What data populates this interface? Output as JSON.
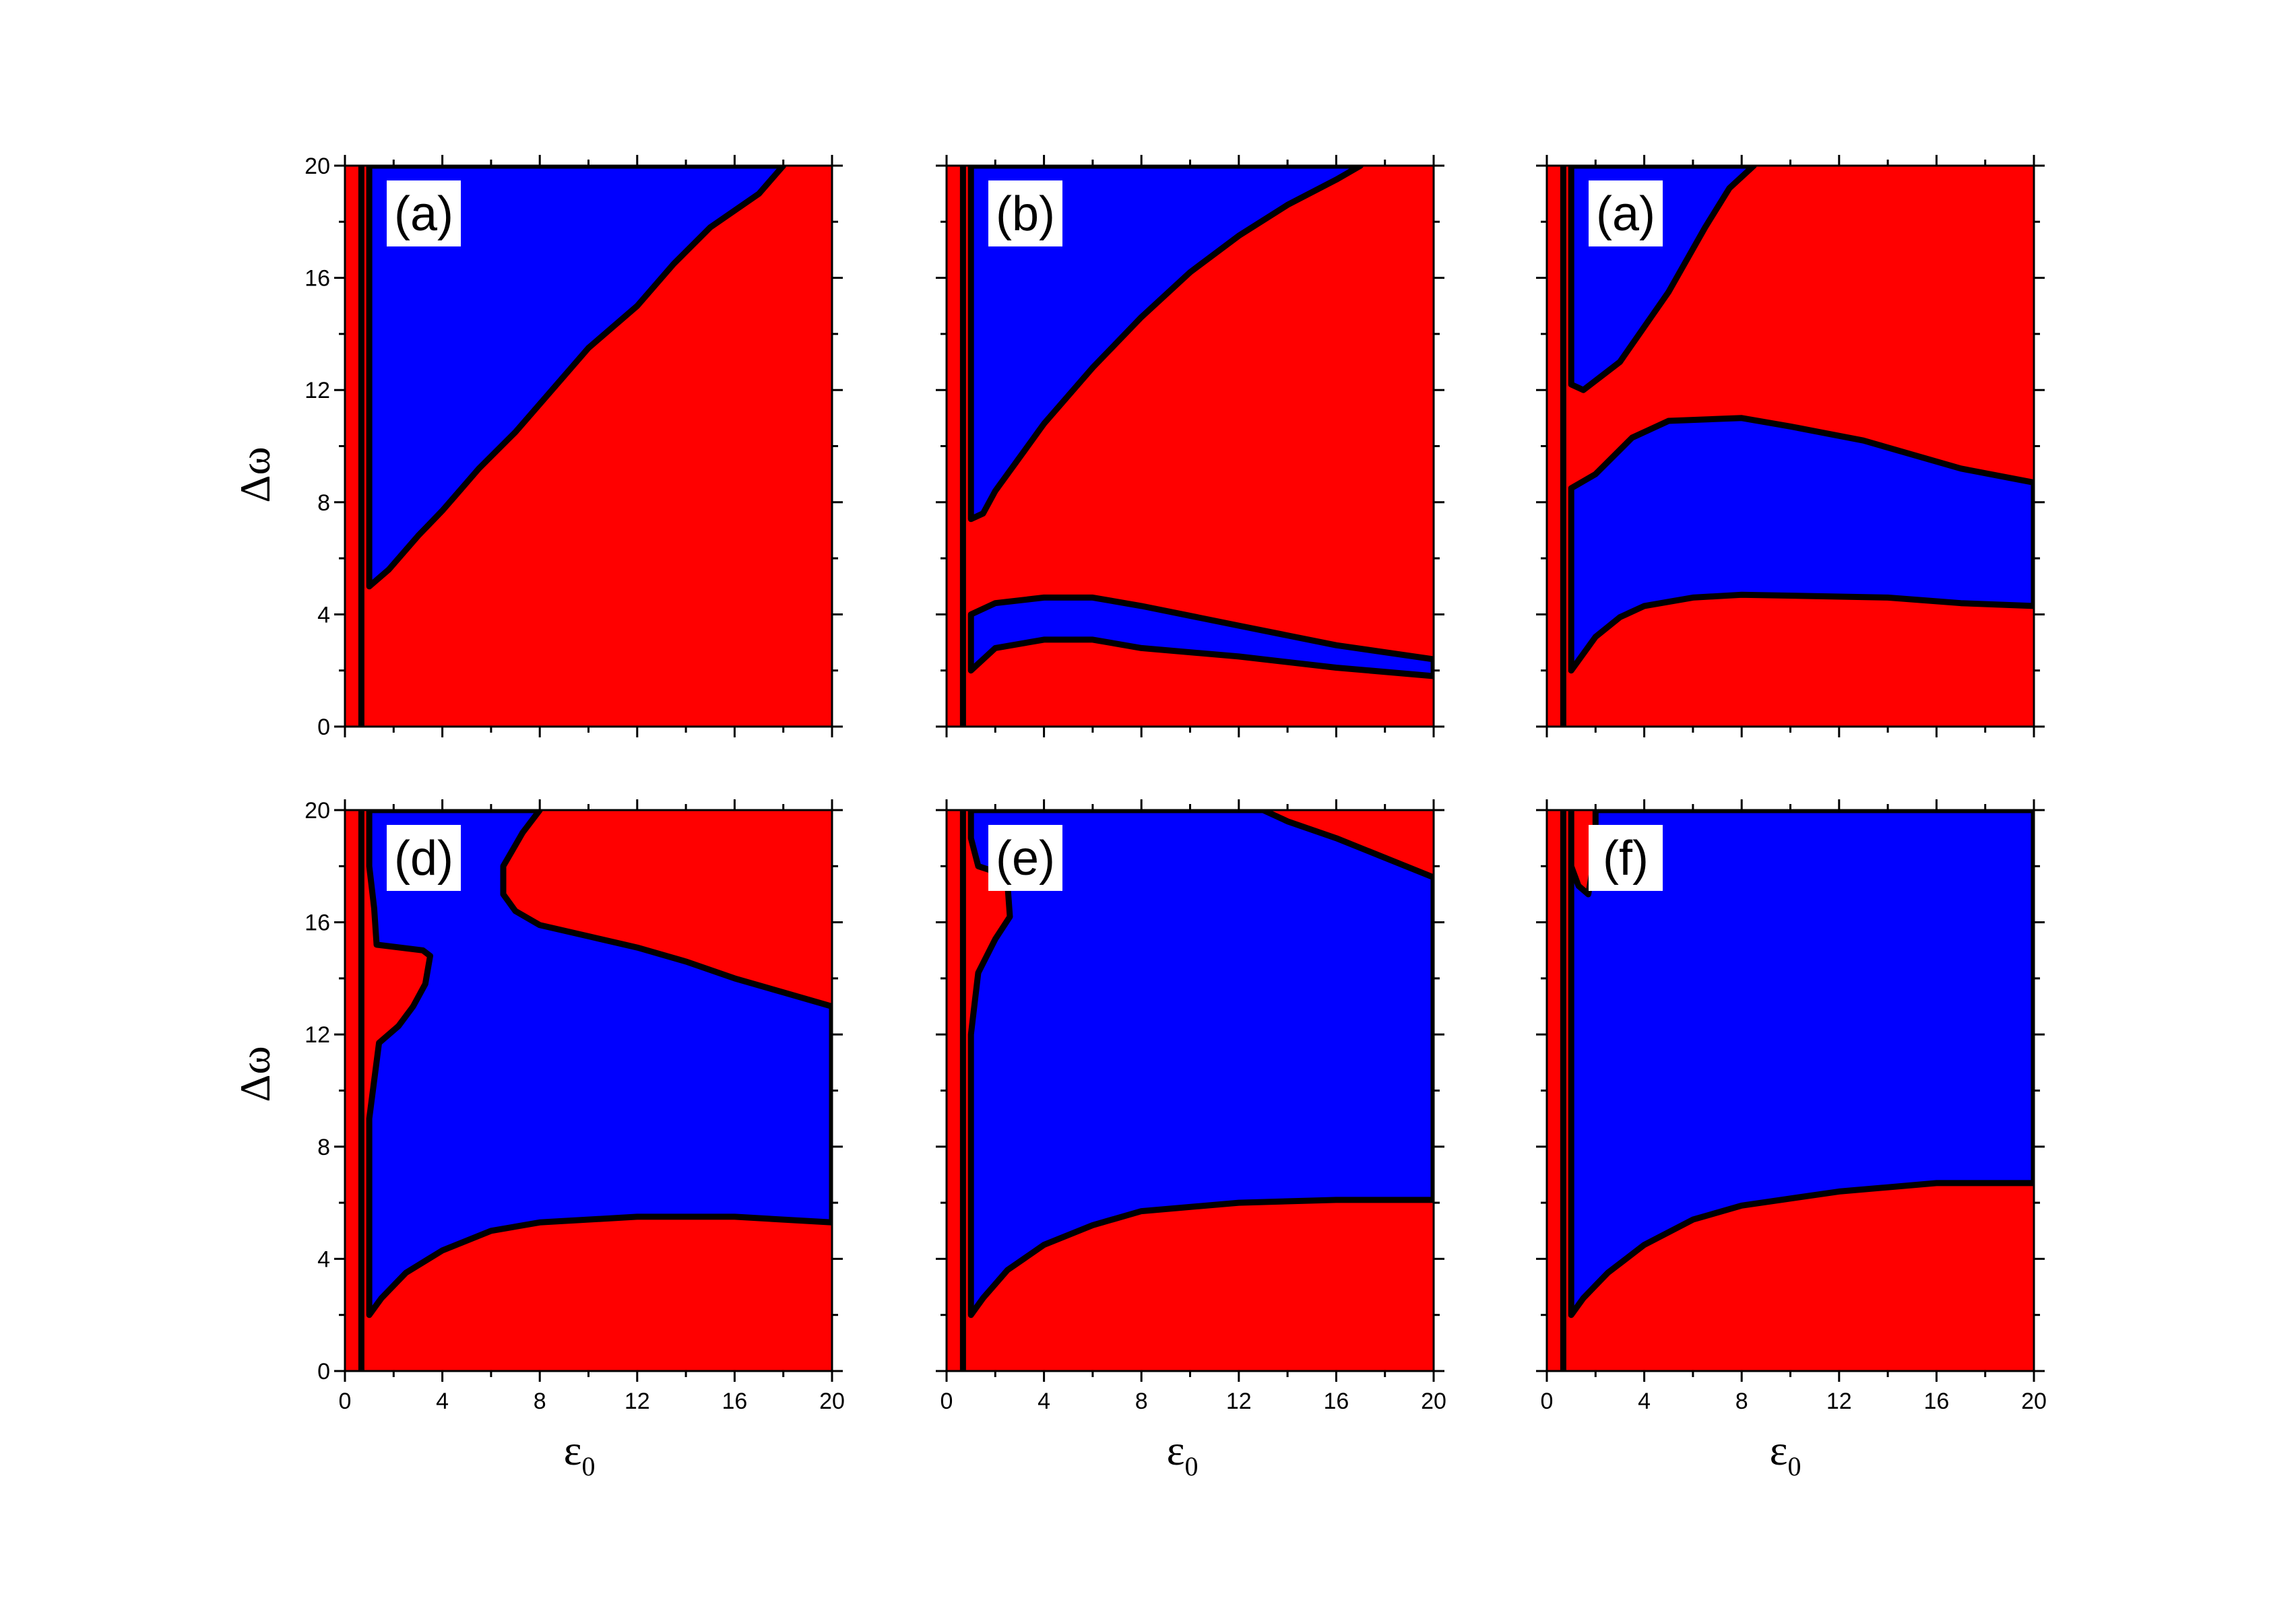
{
  "colors": {
    "region_a": "#ff0000",
    "region_b": "#0000ff",
    "boundary": "#000000"
  },
  "axis_titles": {
    "y": "Δω",
    "x_base": "ε",
    "x_sub": "0"
  },
  "chart_data": [
    {
      "type": "heatmap",
      "label": "(a)",
      "xlim": [
        0,
        20
      ],
      "ylim": [
        0,
        20
      ],
      "x_ticks": [
        "0",
        "4",
        "8",
        "12",
        "16",
        "20"
      ],
      "y_ticks": [
        "0",
        "4",
        "8",
        "12",
        "16",
        "20"
      ],
      "show_x_ticklabels": false,
      "show_y_ticklabels": true,
      "regions": [
        {
          "color": "blue",
          "boundary": [
            [
              1,
              20
            ],
            [
              1,
              5
            ],
            [
              1.8,
              5.6
            ],
            [
              3,
              6.8
            ],
            [
              4,
              7.7
            ],
            [
              4.5,
              8.2
            ],
            [
              5.5,
              9.2
            ],
            [
              7,
              10.5
            ],
            [
              8.5,
              12
            ],
            [
              10,
              13.5
            ],
            [
              12,
              15
            ],
            [
              13.5,
              16.5
            ],
            [
              15,
              17.8
            ],
            [
              17,
              19
            ],
            [
              18,
              20
            ]
          ]
        }
      ]
    },
    {
      "type": "heatmap",
      "label": "(b)",
      "xlim": [
        0,
        20
      ],
      "ylim": [
        0,
        20
      ],
      "x_ticks": [
        "0",
        "4",
        "8",
        "12",
        "16",
        "20"
      ],
      "y_ticks": [
        "0",
        "4",
        "8",
        "12",
        "16",
        "20"
      ],
      "show_x_ticklabels": false,
      "show_y_ticklabels": false,
      "regions": [
        {
          "color": "blue",
          "boundary": [
            [
              1,
              20
            ],
            [
              1,
              7.4
            ],
            [
              1.5,
              7.6
            ],
            [
              2,
              8.4
            ],
            [
              3,
              9.6
            ],
            [
              4,
              10.8
            ],
            [
              6,
              12.8
            ],
            [
              8,
              14.6
            ],
            [
              10,
              16.2
            ],
            [
              12,
              17.5
            ],
            [
              14,
              18.6
            ],
            [
              16,
              19.5
            ],
            [
              17,
              20
            ]
          ]
        },
        {
          "color": "blue",
          "boundary": [
            [
              1,
              2
            ],
            [
              1,
              4
            ],
            [
              2,
              4.4
            ],
            [
              4,
              4.6
            ],
            [
              6,
              4.6
            ],
            [
              8,
              4.3
            ],
            [
              12,
              3.6
            ],
            [
              16,
              2.9
            ],
            [
              20,
              2.4
            ],
            [
              20,
              1.8
            ],
            [
              16,
              2.1
            ],
            [
              12,
              2.5
            ],
            [
              8,
              2.8
            ],
            [
              6,
              3.1
            ],
            [
              4,
              3.1
            ],
            [
              2,
              2.8
            ],
            [
              1,
              2
            ]
          ]
        }
      ]
    },
    {
      "type": "heatmap",
      "label": "(a)",
      "xlim": [
        0,
        20
      ],
      "ylim": [
        0,
        20
      ],
      "x_ticks": [
        "0",
        "4",
        "8",
        "12",
        "16",
        "20"
      ],
      "y_ticks": [
        "0",
        "4",
        "8",
        "12",
        "16",
        "20"
      ],
      "show_x_ticklabels": false,
      "show_y_ticklabels": false,
      "regions": [
        {
          "color": "blue",
          "boundary": [
            [
              1,
              20
            ],
            [
              1,
              12.2
            ],
            [
              1.5,
              12
            ],
            [
              3,
              13
            ],
            [
              5,
              15.5
            ],
            [
              6.5,
              17.8
            ],
            [
              7.5,
              19.2
            ],
            [
              8.5,
              20
            ]
          ]
        },
        {
          "color": "blue",
          "boundary": [
            [
              1,
              2
            ],
            [
              1,
              8.5
            ],
            [
              2,
              9
            ],
            [
              3.5,
              10.3
            ],
            [
              5,
              10.9
            ],
            [
              8,
              11
            ],
            [
              10,
              10.7
            ],
            [
              13,
              10.2
            ],
            [
              17,
              9.2
            ],
            [
              20,
              8.7
            ],
            [
              20,
              4.3
            ],
            [
              17,
              4.4
            ],
            [
              14,
              4.6
            ],
            [
              8,
              4.7
            ],
            [
              6,
              4.6
            ],
            [
              4,
              4.3
            ],
            [
              3,
              3.9
            ],
            [
              2,
              3.2
            ],
            [
              1,
              2
            ]
          ]
        }
      ]
    },
    {
      "type": "heatmap",
      "label": "(d)",
      "xlim": [
        0,
        20
      ],
      "ylim": [
        0,
        20
      ],
      "x_ticks": [
        "0",
        "4",
        "8",
        "12",
        "16",
        "20"
      ],
      "y_ticks": [
        "0",
        "4",
        "8",
        "12",
        "16",
        "20"
      ],
      "show_x_ticklabels": true,
      "show_y_ticklabels": true,
      "regions": [
        {
          "color": "blue",
          "boundary": [
            [
              1,
              20
            ],
            [
              1,
              18
            ],
            [
              1.2,
              16.5
            ],
            [
              1.3,
              15.2
            ],
            [
              3.2,
              15
            ],
            [
              3.5,
              14.8
            ],
            [
              3.3,
              13.8
            ],
            [
              2.8,
              13
            ],
            [
              2.2,
              12.3
            ],
            [
              1.4,
              11.7
            ],
            [
              1,
              9
            ],
            [
              1,
              2
            ],
            [
              1.5,
              2.6
            ],
            [
              2.5,
              3.5
            ],
            [
              4,
              4.3
            ],
            [
              6,
              5
            ],
            [
              8,
              5.3
            ],
            [
              12,
              5.5
            ],
            [
              16,
              5.5
            ],
            [
              20,
              5.3
            ],
            [
              20,
              13
            ],
            [
              18,
              13.5
            ],
            [
              16,
              14
            ],
            [
              14,
              14.6
            ],
            [
              12,
              15.1
            ],
            [
              10,
              15.5
            ],
            [
              8,
              15.9
            ],
            [
              7,
              16.4
            ],
            [
              6.5,
              17
            ],
            [
              6.5,
              18
            ],
            [
              7.3,
              19.2
            ],
            [
              8,
              20
            ]
          ]
        }
      ]
    },
    {
      "type": "heatmap",
      "label": "(e)",
      "xlim": [
        0,
        20
      ],
      "ylim": [
        0,
        20
      ],
      "x_ticks": [
        "0",
        "4",
        "8",
        "12",
        "16",
        "20"
      ],
      "y_ticks": [
        "0",
        "4",
        "8",
        "12",
        "16",
        "20"
      ],
      "show_x_ticklabels": true,
      "show_y_ticklabels": false,
      "regions": [
        {
          "color": "blue",
          "boundary": [
            [
              1,
              20
            ],
            [
              1,
              19
            ],
            [
              1.3,
              18
            ],
            [
              2,
              17.8
            ],
            [
              2.5,
              17.4
            ],
            [
              2.6,
              16.2
            ],
            [
              2,
              15.4
            ],
            [
              1.3,
              14.2
            ],
            [
              1,
              12
            ],
            [
              1,
              2
            ],
            [
              1.5,
              2.6
            ],
            [
              2.5,
              3.6
            ],
            [
              4,
              4.5
            ],
            [
              6,
              5.2
            ],
            [
              8,
              5.7
            ],
            [
              12,
              6
            ],
            [
              16,
              6.1
            ],
            [
              20,
              6.1
            ],
            [
              20,
              17.6
            ],
            [
              18,
              18.3
            ],
            [
              16,
              19
            ],
            [
              14,
              19.6
            ],
            [
              13,
              20
            ]
          ]
        }
      ]
    },
    {
      "type": "heatmap",
      "label": "(f)",
      "xlim": [
        0,
        20
      ],
      "ylim": [
        0,
        20
      ],
      "x_ticks": [
        "0",
        "4",
        "8",
        "12",
        "16",
        "20"
      ],
      "y_ticks": [
        "0",
        "4",
        "8",
        "12",
        "16",
        "20"
      ],
      "show_x_ticklabels": true,
      "show_y_ticklabels": false,
      "regions": [
        {
          "color": "blue",
          "boundary": [
            [
              1,
              20
            ],
            [
              1,
              18
            ],
            [
              1.3,
              17.3
            ],
            [
              1.7,
              17
            ],
            [
              2,
              18.5
            ],
            [
              2,
              20
            ],
            [
              20,
              20
            ],
            [
              20,
              6.7
            ],
            [
              16,
              6.7
            ],
            [
              12,
              6.4
            ],
            [
              8,
              5.9
            ],
            [
              6,
              5.4
            ],
            [
              4,
              4.5
            ],
            [
              2.5,
              3.5
            ],
            [
              1.5,
              2.6
            ],
            [
              1,
              2
            ]
          ]
        }
      ]
    }
  ]
}
